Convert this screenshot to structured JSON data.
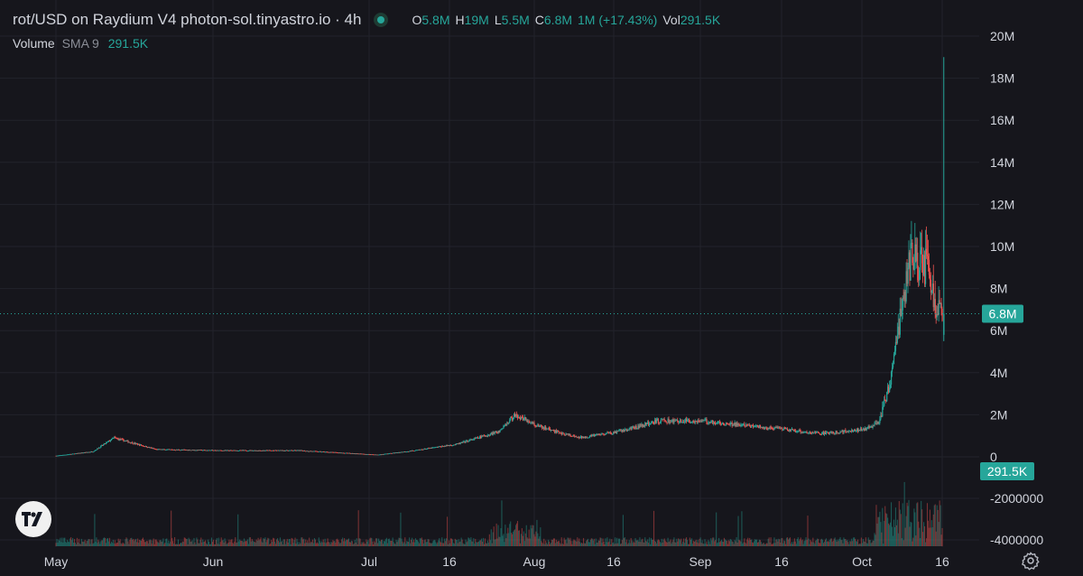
{
  "header": {
    "title": "rot/USD on Raydium V4 photon-sol.tinyastro.io · 4h",
    "ohlc": [
      {
        "key": "O",
        "value": "5.8M"
      },
      {
        "key": "H",
        "value": "19M"
      },
      {
        "key": "L",
        "value": "5.5M"
      },
      {
        "key": "C",
        "value": "6.8M"
      }
    ],
    "change": "1M (+17.43%)",
    "vol_label": "Vol",
    "vol_value": "291.5K"
  },
  "volume_legend": {
    "label": "Volume",
    "sma": "SMA 9",
    "value": "291.5K"
  },
  "colors": {
    "bg": "#16161c",
    "up": "#26a69a",
    "down": "#ef5350",
    "grid": "#22232b",
    "text": "#d1d4dc"
  },
  "icons": {
    "logo": "tradingview-logo-icon",
    "settings": "gear-icon"
  },
  "chart_data": {
    "type": "candlestick",
    "interval": "4h",
    "price_axis": {
      "ticks": [
        "20M",
        "18M",
        "16M",
        "14M",
        "12M",
        "10M",
        "8M",
        "6M",
        "4M",
        "2M",
        "0"
      ],
      "range": [
        0,
        20000000
      ]
    },
    "volume_axis": {
      "ticks": [
        "-2000000",
        "-4000000"
      ]
    },
    "time_axis": {
      "ticks": [
        "May",
        "Jun",
        "Jul",
        "16",
        "Aug",
        "16",
        "Sep",
        "16",
        "Oct",
        "16"
      ]
    },
    "last_price_label": "6.8M",
    "last_price": 6800000,
    "last_volume_label": "291.5K",
    "price_path": [
      [
        "May",
        0.05
      ],
      [
        "May 8",
        0.25
      ],
      [
        "May 12",
        0.9
      ],
      [
        "May 20",
        0.35
      ],
      [
        "Jun",
        0.3
      ],
      [
        "Jun 16",
        0.3
      ],
      [
        "Jul",
        0.1
      ],
      [
        "Jul 8",
        0.3
      ],
      [
        "Jul 16",
        0.6
      ],
      [
        "Jul 24",
        1.2
      ],
      [
        "Jul 27",
        2.0
      ],
      [
        "Aug",
        1.4
      ],
      [
        "Aug 8",
        0.9
      ],
      [
        "Aug 16",
        1.2
      ],
      [
        "Aug 23",
        1.7
      ],
      [
        "Sep",
        1.7
      ],
      [
        "Sep 8",
        1.5
      ],
      [
        "Sep 16",
        1.3
      ],
      [
        "Sep 23",
        1.1
      ],
      [
        "Oct",
        1.3
      ],
      [
        "Oct 4",
        1.6
      ],
      [
        "Oct 6",
        3.5
      ],
      [
        "Oct 8",
        6.5
      ],
      [
        "Oct 10",
        9.5
      ],
      [
        "Oct 13",
        9.0
      ],
      [
        "Oct 15",
        7.0
      ],
      [
        "Oct 16",
        6.8
      ]
    ],
    "peak_high": 19000000,
    "grid": true
  }
}
